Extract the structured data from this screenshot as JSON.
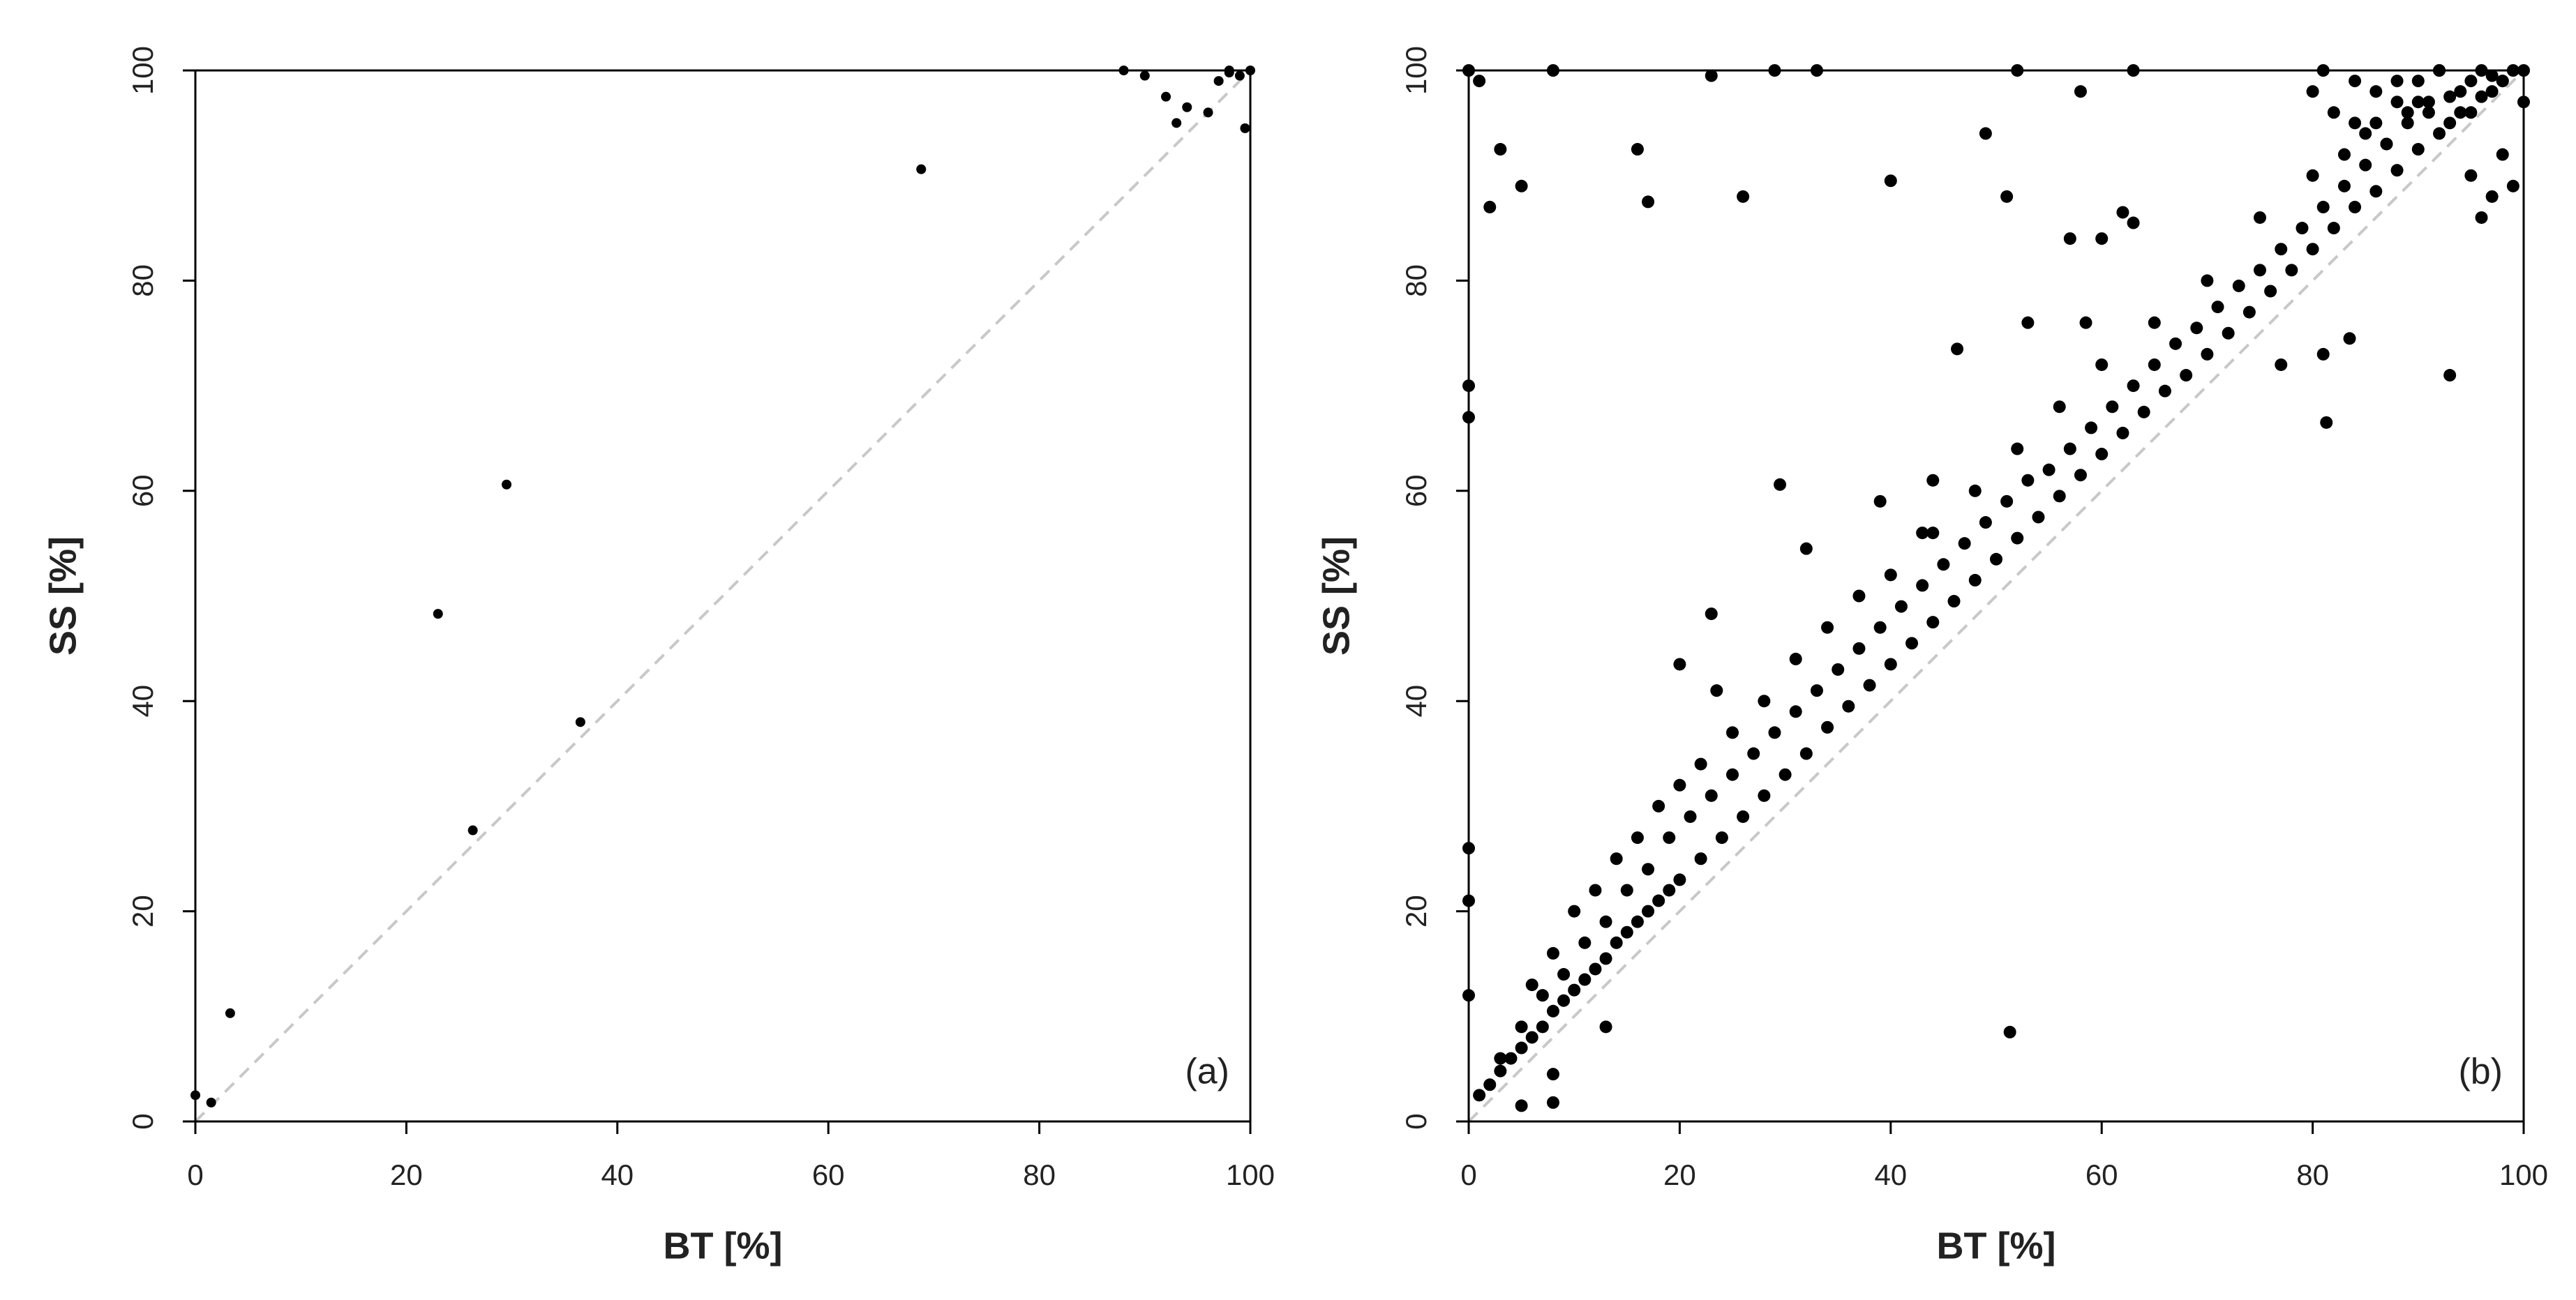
{
  "chart_data": [
    {
      "type": "scatter",
      "xlabel": "BT [%]",
      "ylabel": "SS [%]",
      "annotation": "(a)",
      "color": "#000000",
      "xlim": [
        0,
        100
      ],
      "ylim": [
        0,
        100
      ],
      "xticks": [
        0,
        20,
        40,
        60,
        80,
        100
      ],
      "yticks": [
        0,
        20,
        40,
        60,
        80,
        100
      ],
      "x": [
        0,
        1.5,
        3.3,
        23,
        26.3,
        29.5,
        36.5,
        68.8,
        88,
        90,
        92,
        93,
        94,
        96,
        97,
        98,
        99,
        100,
        99.5,
        98
      ],
      "values": [
        2.5,
        1.8,
        10.3,
        48.3,
        27.7,
        60.6,
        38,
        90.6,
        100,
        99.5,
        97.5,
        95,
        96.5,
        96,
        99,
        100,
        99.5,
        100,
        94.5,
        99.8
      ]
    },
    {
      "type": "scatter",
      "xlabel": "BT [%]",
      "ylabel": "SS [%]",
      "annotation": "(b)",
      "color": "#000000",
      "xlim": [
        0,
        100
      ],
      "ylim": [
        0,
        100
      ],
      "xticks": [
        0,
        20,
        40,
        60,
        80,
        100
      ],
      "yticks": [
        0,
        20,
        40,
        60,
        80,
        100
      ],
      "x": [
        0,
        1,
        3,
        5,
        8,
        2,
        16,
        17,
        23,
        26,
        29,
        33,
        40,
        49,
        51,
        52,
        58,
        63,
        0,
        0,
        0,
        0,
        0,
        29.5,
        51.3,
        93,
        81.3,
        83.5,
        81,
        77,
        23,
        32,
        20,
        23.5,
        46.3,
        53,
        57,
        60,
        62,
        63,
        58.5,
        39,
        44,
        43,
        8,
        8,
        13,
        5,
        100,
        98,
        97,
        99,
        96,
        95,
        1,
        2,
        3,
        4,
        5,
        6,
        7,
        8,
        9,
        10,
        11,
        12,
        13,
        14,
        15,
        16,
        17,
        18,
        19,
        20,
        22,
        24,
        26,
        28,
        30,
        32,
        34,
        36,
        38,
        40,
        42,
        44,
        46,
        48,
        50,
        52,
        54,
        56,
        58,
        60,
        62,
        64,
        66,
        68,
        70,
        72,
        74,
        76,
        78,
        80,
        82,
        84,
        86,
        88,
        90,
        92,
        94,
        96,
        98,
        100,
        3,
        5,
        7,
        9,
        11,
        13,
        15,
        17,
        19,
        21,
        23,
        25,
        27,
        29,
        31,
        33,
        35,
        37,
        39,
        41,
        43,
        45,
        47,
        49,
        51,
        53,
        55,
        57,
        59,
        61,
        63,
        65,
        67,
        69,
        71,
        73,
        75,
        77,
        79,
        81,
        83,
        85,
        87,
        89,
        91,
        93,
        95,
        97,
        6,
        8,
        10,
        12,
        14,
        16,
        18,
        20,
        22,
        25,
        28,
        31,
        34,
        37,
        40,
        44,
        48,
        52,
        56,
        60,
        65,
        70,
        75,
        80,
        84,
        86,
        88,
        90,
        92,
        80,
        82,
        84,
        86,
        88,
        90,
        92,
        94,
        96,
        98,
        81,
        83,
        85,
        87,
        89,
        91,
        93,
        95,
        97,
        99
      ],
      "values": [
        100,
        99,
        92.5,
        89,
        100,
        87,
        92.5,
        87.5,
        99.5,
        88,
        100,
        100,
        89.5,
        94,
        88,
        100,
        98,
        100,
        70,
        67,
        26,
        21,
        12,
        60.6,
        8.5,
        71,
        66.5,
        74.5,
        73,
        72,
        48.3,
        54.5,
        43.5,
        41,
        73.5,
        76,
        84,
        84,
        86.5,
        85.5,
        76,
        59,
        61,
        56,
        4.5,
        1.8,
        9,
        1.5,
        97,
        92,
        88,
        89,
        86,
        90,
        2.5,
        3.5,
        4.8,
        6,
        7,
        8,
        9,
        10.5,
        11.5,
        12.5,
        13.5,
        14.5,
        15.5,
        17,
        18,
        19,
        20,
        21,
        22,
        23,
        25,
        27,
        29,
        31,
        33,
        35,
        37.5,
        39.5,
        41.5,
        43.5,
        45.5,
        47.5,
        49.5,
        51.5,
        53.5,
        55.5,
        57.5,
        59.5,
        61.5,
        63.5,
        65.5,
        67.5,
        69.5,
        71,
        73,
        75,
        77,
        79,
        81,
        83,
        85,
        87,
        88.5,
        90.5,
        92.5,
        94,
        96,
        97.5,
        99,
        100,
        6,
        9,
        12,
        14,
        17,
        19,
        22,
        24,
        27,
        29,
        31,
        33,
        35,
        37,
        39,
        41,
        43,
        45,
        47,
        49,
        51,
        53,
        55,
        57,
        59,
        61,
        62,
        64,
        66,
        68,
        70,
        72,
        74,
        75.5,
        77.5,
        79.5,
        81,
        83,
        85,
        87,
        89,
        91,
        93,
        95,
        96,
        97.5,
        99,
        99.5,
        13,
        16,
        20,
        22,
        25,
        27,
        30,
        32,
        34,
        37,
        40,
        44,
        47,
        50,
        52,
        56,
        60,
        64,
        68,
        72,
        76,
        80,
        86,
        90,
        95,
        98,
        99,
        97,
        100,
        98,
        96,
        99,
        95,
        97,
        99,
        100,
        98,
        100,
        99,
        100,
        92,
        94,
        93,
        96,
        97,
        95,
        96,
        98,
        100
      ]
    }
  ]
}
